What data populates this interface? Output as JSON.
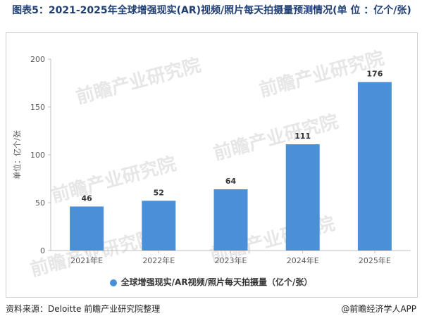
{
  "title": "图表5：2021-2025年全球增强现实(AR)视频/照片每天拍摄量预测情况(单 位 ：亿个/张)",
  "watermark": {
    "brand": "前瞻产业研究院"
  },
  "source": "资料来源：Deloitte 前瞻产业研究院整理",
  "credit": "@前瞻经济学人APP",
  "chart_data": {
    "type": "bar",
    "title": "图表5：2021-2025年全球增强现实(AR)视频/照片每天拍摄量预测情况(单 位 ：亿个/张)",
    "ylabel": "单位：亿个/张",
    "xlabel": "",
    "ylim": [
      0,
      200
    ],
    "yticks": [
      "0",
      "50",
      "100",
      "150",
      "200"
    ],
    "categories": [
      "2021年E",
      "2022年E",
      "2023年E",
      "2024年E",
      "2025年E"
    ],
    "series": [
      {
        "name": "全球增强现实/AR视频/照片每天拍摄量（亿个/张）",
        "values": [
          46,
          52,
          64,
          111,
          176
        ],
        "color": "#4a90d9"
      }
    ],
    "grid": false,
    "legend_position": "bottom"
  }
}
